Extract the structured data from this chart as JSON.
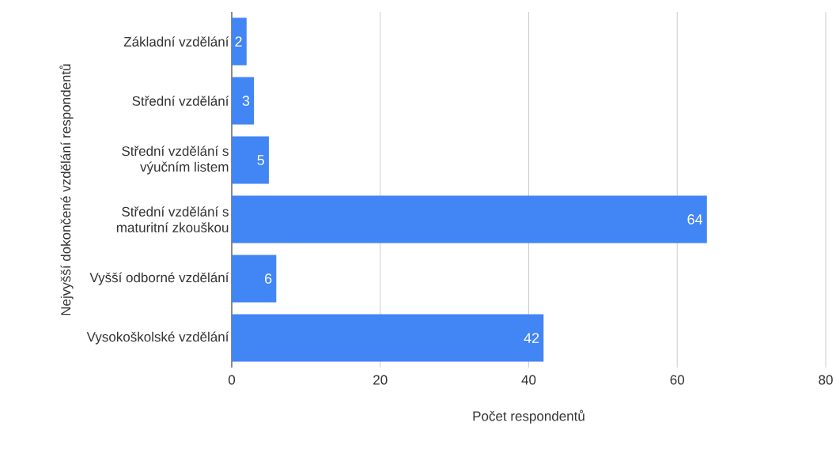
{
  "chart_data": {
    "type": "bar",
    "orientation": "horizontal",
    "xlabel": "Počet respondentů",
    "ylabel": "Nejvyšší dokončené vzdělání respondentů",
    "categories": [
      "Základní vzdělání",
      "Střední vzdělání",
      "Střední vzdělání s výučním listem",
      "Střední vzdělání s maturitní zkouškou",
      "Vyšší odborné vzdělání",
      "Vysokoškolské vzdělání"
    ],
    "values": [
      2,
      3,
      5,
      64,
      6,
      42
    ],
    "color": "#4285f4",
    "xlim": [
      0,
      80
    ],
    "xticks": [
      0,
      20,
      40,
      60,
      80
    ],
    "grid": "x",
    "data_labels": true
  }
}
